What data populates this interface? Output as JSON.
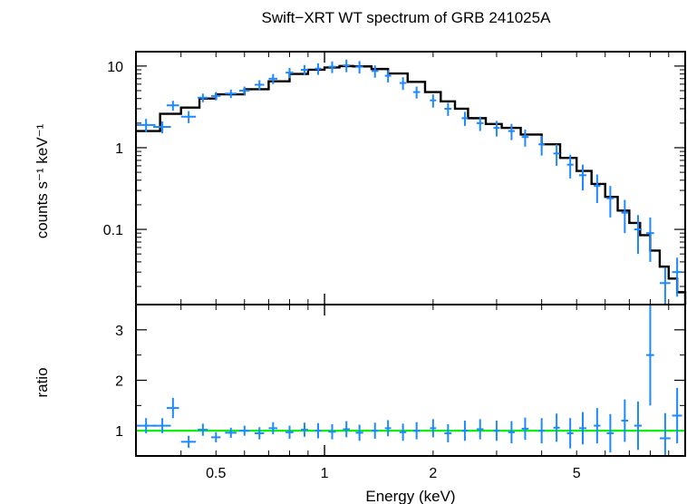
{
  "chart_data": [
    {
      "type": "scatter",
      "title": "Swift−XRT WT spectrum of GRB 241025A",
      "ylabel": "counts s⁻¹ keV⁻¹",
      "xscale": "log",
      "yscale": "log",
      "xlim": [
        0.3,
        10
      ],
      "ylim": [
        0.012,
        15
      ],
      "yticks": [
        0.1,
        1,
        10
      ],
      "ytick_labels": [
        "0.1",
        "1",
        "10"
      ],
      "colors": {
        "data": "#1e88ff",
        "model": "#000000"
      },
      "series": [
        {
          "name": "",
          "x": [
            0.32,
            0.355,
            0.38,
            0.42,
            0.46,
            0.5,
            0.55,
            0.6,
            0.66,
            0.72,
            0.8,
            0.88,
            0.96,
            1.05,
            1.15,
            1.25,
            1.38,
            1.5,
            1.65,
            1.8,
            2.0,
            2.2,
            2.45,
            2.7,
            3.0,
            3.3,
            3.6,
            4.0,
            4.4,
            4.8,
            5.2,
            5.7,
            6.2,
            6.8,
            7.4,
            8.0,
            8.8,
            9.5
          ],
          "y": [
            1.9,
            1.8,
            3.3,
            2.4,
            4.1,
            4.3,
            4.6,
            5.0,
            5.9,
            7.0,
            8.3,
            9.0,
            9.3,
            9.8,
            10.2,
            9.8,
            8.7,
            7.6,
            6.2,
            4.8,
            3.8,
            3.0,
            2.3,
            2.0,
            1.75,
            1.6,
            1.35,
            1.1,
            0.85,
            0.62,
            0.46,
            0.34,
            0.24,
            0.16,
            0.1,
            0.09,
            0.022,
            0.03
          ],
          "xerr": [
            0.02,
            0.02,
            0.015,
            0.02,
            0.015,
            0.015,
            0.02,
            0.02,
            0.02,
            0.02,
            0.02,
            0.02,
            0.02,
            0.025,
            0.025,
            0.03,
            0.03,
            0.03,
            0.035,
            0.04,
            0.04,
            0.05,
            0.05,
            0.06,
            0.06,
            0.07,
            0.08,
            0.08,
            0.09,
            0.1,
            0.12,
            0.12,
            0.14,
            0.15,
            0.18,
            0.2,
            0.3,
            0.3
          ],
          "yerr": [
            0.35,
            0.3,
            0.45,
            0.4,
            0.5,
            0.5,
            0.55,
            0.6,
            0.8,
            1.0,
            1.2,
            1.3,
            1.5,
            1.6,
            1.8,
            1.7,
            1.5,
            1.3,
            1.1,
            0.8,
            0.7,
            0.55,
            0.45,
            0.4,
            0.38,
            0.36,
            0.32,
            0.3,
            0.25,
            0.2,
            0.16,
            0.13,
            0.1,
            0.07,
            0.05,
            0.05,
            0.012,
            0.015
          ]
        }
      ],
      "model": {
        "x": [
          0.3,
          0.35,
          0.4,
          0.45,
          0.5,
          0.6,
          0.7,
          0.8,
          0.9,
          1.0,
          1.1,
          1.2,
          1.35,
          1.5,
          1.7,
          1.9,
          2.1,
          2.3,
          2.5,
          2.8,
          3.1,
          3.5,
          4.0,
          4.5,
          5.0,
          5.5,
          6.0,
          6.5,
          7.0,
          7.5,
          8.0,
          8.5,
          9.0,
          9.5,
          10.0
        ],
        "y": [
          1.6,
          2.6,
          3.1,
          4.0,
          4.5,
          5.2,
          6.5,
          8.0,
          9.0,
          9.6,
          10.0,
          9.9,
          9.2,
          8.1,
          6.4,
          4.8,
          3.7,
          3.0,
          2.3,
          1.95,
          1.75,
          1.45,
          1.1,
          0.75,
          0.52,
          0.36,
          0.25,
          0.17,
          0.12,
          0.085,
          0.055,
          0.035,
          0.025,
          0.017,
          0.012
        ]
      }
    },
    {
      "type": "scatter",
      "title": "",
      "xlabel": "Energy (keV)",
      "ylabel": "ratio",
      "xscale": "log",
      "yscale": "linear",
      "xlim": [
        0.3,
        10
      ],
      "ylim": [
        0.5,
        3.5
      ],
      "xticks": [
        0.5,
        1,
        2,
        5
      ],
      "xtick_labels": [
        "0.5",
        "1",
        "2",
        "5"
      ],
      "yticks": [
        1,
        2,
        3
      ],
      "ytick_labels": [
        "1",
        "2",
        "3"
      ],
      "reference_line": {
        "y": 1,
        "color": "#00ee00"
      },
      "colors": {
        "data": "#1e88ff"
      },
      "series": [
        {
          "name": "",
          "x": [
            0.32,
            0.355,
            0.38,
            0.42,
            0.46,
            0.5,
            0.55,
            0.6,
            0.66,
            0.72,
            0.8,
            0.88,
            0.96,
            1.05,
            1.15,
            1.25,
            1.38,
            1.5,
            1.65,
            1.8,
            2.0,
            2.2,
            2.45,
            2.7,
            3.0,
            3.3,
            3.6,
            4.0,
            4.4,
            4.8,
            5.2,
            5.7,
            6.2,
            6.8,
            7.4,
            8.0,
            8.8,
            9.5
          ],
          "y": [
            1.1,
            1.1,
            1.45,
            0.78,
            1.02,
            0.87,
            0.96,
            1.0,
            0.95,
            1.05,
            0.97,
            1.02,
            1.0,
            0.98,
            1.03,
            0.96,
            1.0,
            1.05,
            0.97,
            1.0,
            1.05,
            0.95,
            1.0,
            1.03,
            1.0,
            0.97,
            1.04,
            1.0,
            1.06,
            0.95,
            1.05,
            1.1,
            0.95,
            1.2,
            1.1,
            2.5,
            0.85,
            1.3
          ],
          "xerr": [
            0.02,
            0.02,
            0.015,
            0.02,
            0.015,
            0.015,
            0.02,
            0.02,
            0.02,
            0.02,
            0.02,
            0.02,
            0.02,
            0.025,
            0.025,
            0.03,
            0.03,
            0.03,
            0.035,
            0.04,
            0.04,
            0.05,
            0.05,
            0.06,
            0.06,
            0.07,
            0.08,
            0.08,
            0.09,
            0.1,
            0.12,
            0.12,
            0.14,
            0.15,
            0.18,
            0.2,
            0.3,
            0.3
          ],
          "yerr": [
            0.15,
            0.15,
            0.2,
            0.12,
            0.12,
            0.1,
            0.1,
            0.1,
            0.12,
            0.12,
            0.13,
            0.14,
            0.15,
            0.15,
            0.16,
            0.16,
            0.16,
            0.16,
            0.17,
            0.17,
            0.18,
            0.18,
            0.2,
            0.2,
            0.2,
            0.22,
            0.22,
            0.25,
            0.28,
            0.3,
            0.32,
            0.35,
            0.38,
            0.42,
            0.48,
            1.0,
            0.5,
            0.55
          ]
        }
      ]
    }
  ]
}
